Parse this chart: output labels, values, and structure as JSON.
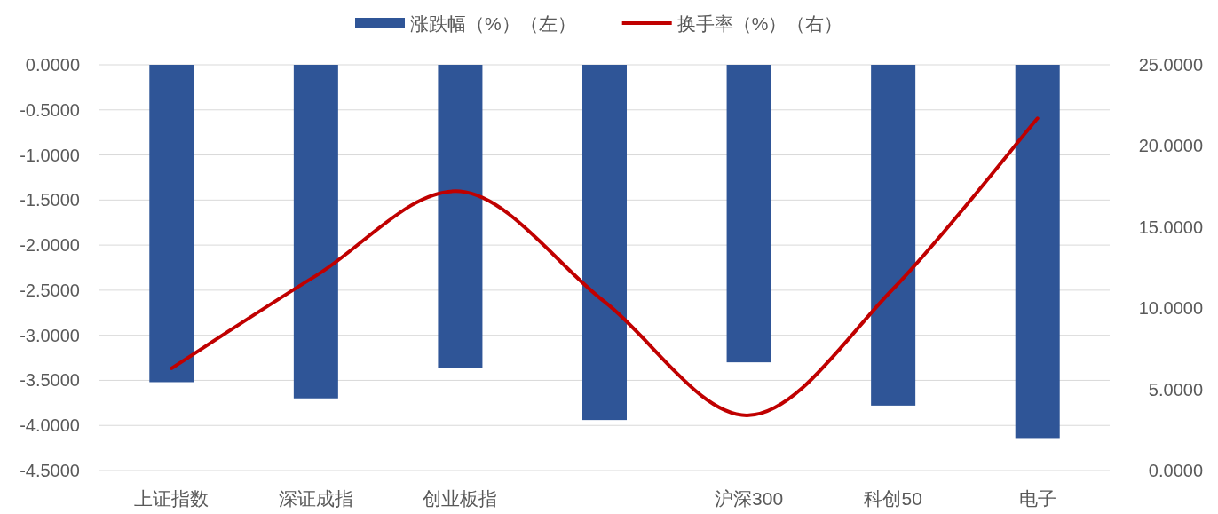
{
  "chart_data": {
    "type": "bar",
    "categories": [
      "上证指数",
      "深证成指",
      "创业板指",
      null,
      "沪深300",
      "科创50",
      "电子"
    ],
    "series": [
      {
        "name": "涨跌幅（%）（左）",
        "color": "#2f5597",
        "values": [
          -3.52,
          -3.7,
          -3.36,
          -3.94,
          -3.3,
          -3.78,
          -4.14
        ]
      },
      {
        "name": "换手率（%）（右）",
        "type": "line",
        "axis": "y2",
        "color": "#c00000",
        "values": [
          6.3,
          12.0,
          17.2,
          10.4,
          3.4,
          11.2,
          21.7
        ]
      }
    ],
    "ylim": [
      -4.5,
      0
    ],
    "yticks": [
      {
        "value": 0,
        "label": "0.0000"
      },
      {
        "value": -0.5,
        "label": "-0.5000"
      },
      {
        "value": -1,
        "label": "-1.0000"
      },
      {
        "value": -1.5,
        "label": "-1.5000"
      },
      {
        "value": -2,
        "label": "-2.0000"
      },
      {
        "value": -2.5,
        "label": "-2.5000"
      },
      {
        "value": -3,
        "label": "-3.0000"
      },
      {
        "value": -3.5,
        "label": "-3.5000"
      },
      {
        "value": -4,
        "label": "-4.0000"
      },
      {
        "value": -4.5,
        "label": "-4.5000"
      }
    ],
    "y2lim": [
      0,
      25
    ],
    "y2ticks": [
      {
        "value": 0,
        "label": "0.0000"
      },
      {
        "value": 5,
        "label": "5.0000"
      },
      {
        "value": 10,
        "label": "10.0000"
      },
      {
        "value": 15,
        "label": "15.0000"
      },
      {
        "value": 20,
        "label": "20.0000"
      },
      {
        "value": 25,
        "label": "25.0000"
      }
    ],
    "grid": "y",
    "legend": "top"
  }
}
